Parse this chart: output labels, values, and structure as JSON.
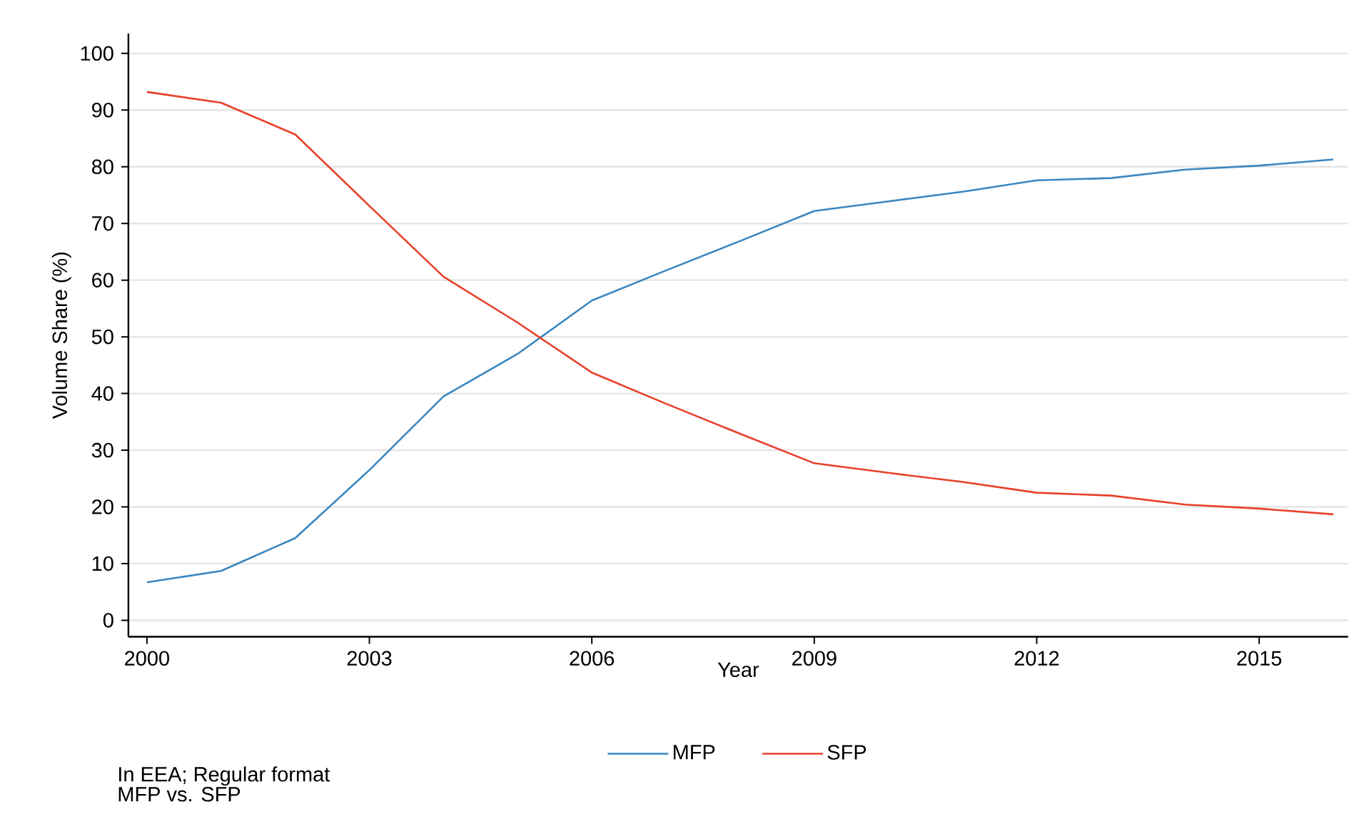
{
  "chart_data": {
    "type": "line",
    "xlabel": "Year",
    "ylabel": "Volume Share (%)",
    "x": [
      2000,
      2001,
      2002,
      2003,
      2004,
      2005,
      2006,
      2007,
      2008,
      2009,
      2010,
      2011,
      2012,
      2013,
      2014,
      2015,
      2016
    ],
    "series": [
      {
        "name": "MFP",
        "color": "#3a87c0",
        "values": [
          6.7,
          8.7,
          14.5,
          26.5,
          39.5,
          47,
          56.4,
          61.7,
          66.9,
          72.2,
          73.9,
          75.6,
          77.6,
          78.0,
          79.5,
          80.2,
          81.3
        ]
      },
      {
        "name": "SFP",
        "color": "#e8402a",
        "values": [
          93.2,
          91.3,
          85.7,
          73.1,
          60.6,
          52.5,
          43.7,
          38.2,
          32.9,
          27.7,
          26.0,
          24.4,
          22.5,
          22.0,
          20.4,
          19.7,
          18.7
        ]
      }
    ],
    "xlim": [
      1999.75,
      2016.2
    ],
    "ylim": [
      -2.9,
      103.5
    ],
    "xticks": [
      2000,
      2003,
      2006,
      2009,
      2012,
      2015
    ],
    "yticks": [
      0,
      10,
      20,
      30,
      40,
      50,
      60,
      70,
      80,
      90,
      100
    ],
    "grid": "y",
    "legend": "bottom",
    "marker": "none",
    "line_style": "solid",
    "annotations": [
      "In EEA; Regular format",
      "MFP vs. SFP"
    ]
  }
}
